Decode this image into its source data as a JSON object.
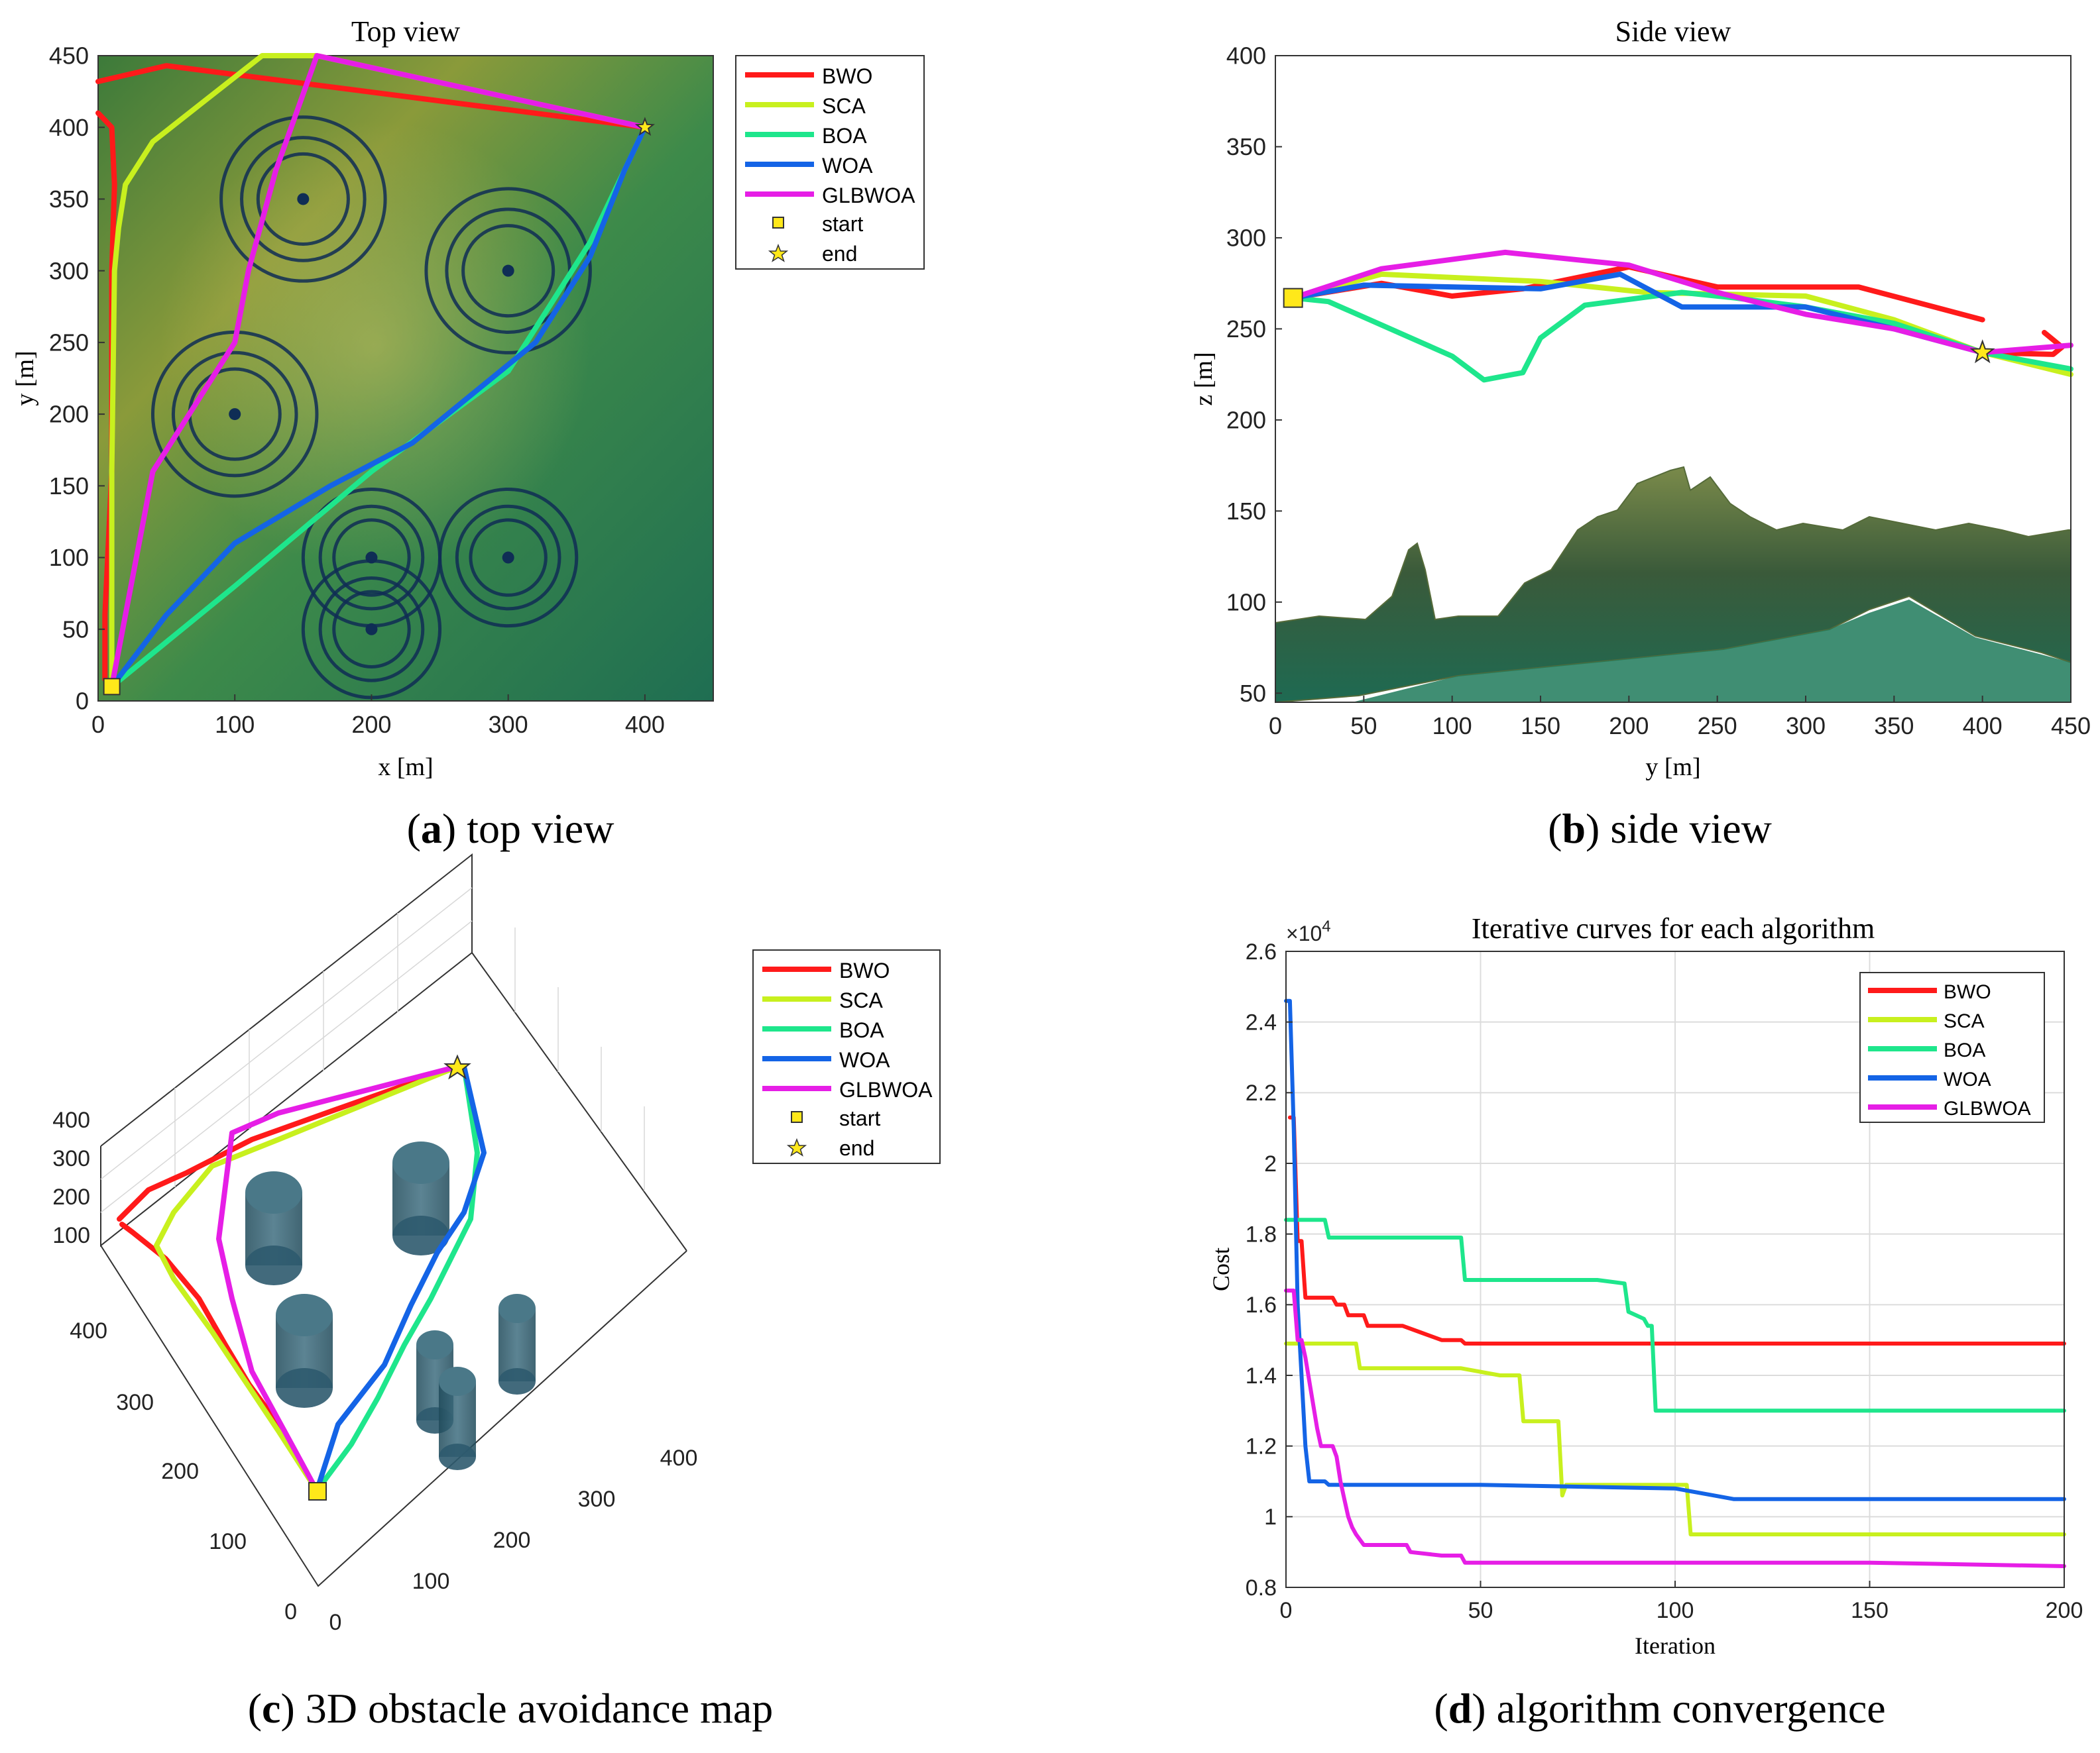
{
  "colors": {
    "BWO": "#ff1a1a",
    "SCA": "#c8f01e",
    "BOA": "#1ee68c",
    "WOA": "#1464e6",
    "GLBWOA": "#e61ee6",
    "obstacle_ring": "#0f2d55",
    "cylinder": "#2e5a6e",
    "marker": "#ffe81a"
  },
  "legend_labels": {
    "BWO": "BWO",
    "SCA": "SCA",
    "BOA": "BOA",
    "WOA": "WOA",
    "GLBWOA": "GLBWOA",
    "start": "start",
    "end": "end"
  },
  "captions": {
    "a_letter": "a",
    "a_text": "top view",
    "b_letter": "b",
    "b_text": "side view",
    "c_letter": "c",
    "c_text": "3D obstacle avoidance map",
    "d_letter": "d",
    "d_text": "algorithm convergence"
  },
  "panel_3d": {
    "y_ticks": [
      "400",
      "300",
      "200",
      "100",
      "0"
    ],
    "x_ticks": [
      "0",
      "100",
      "200",
      "300",
      "400"
    ],
    "z_ticks": [
      "400",
      "300",
      "200",
      "100"
    ]
  },
  "chart_data": [
    {
      "id": "top_view",
      "type": "line",
      "title": "Top view",
      "xlabel": "x [m]",
      "ylabel": "y [m]",
      "xlim": [
        0,
        450
      ],
      "ylim": [
        0,
        450
      ],
      "xticks": [
        0,
        100,
        200,
        300,
        400
      ],
      "yticks": [
        0,
        50,
        100,
        150,
        200,
        250,
        300,
        350,
        400,
        450
      ],
      "background": "terrain heightmap",
      "start": [
        10,
        10
      ],
      "end": [
        400,
        400
      ],
      "obstacles": [
        {
          "x": 150,
          "y": 350,
          "r": 60
        },
        {
          "x": 300,
          "y": 300,
          "r": 60
        },
        {
          "x": 100,
          "y": 200,
          "r": 60
        },
        {
          "x": 200,
          "y": 100,
          "r": 50
        },
        {
          "x": 300,
          "y": 100,
          "r": 50
        },
        {
          "x": 200,
          "y": 50,
          "r": 50
        }
      ],
      "series": [
        {
          "name": "BWO",
          "x": [
            5,
            5,
            10,
            10,
            12,
            10,
            5,
            0
          ],
          "y": [
            15,
            60,
            160,
            300,
            360,
            400,
            405,
            410
          ]
        },
        {
          "name": "BWO",
          "x": [
            0,
            50,
            400
          ],
          "y": [
            432,
            443,
            400
          ]
        },
        {
          "name": "SCA",
          "x": [
            10,
            10,
            12,
            15,
            20,
            40,
            80,
            120,
            160,
            400
          ],
          "y": [
            15,
            160,
            300,
            330,
            360,
            390,
            420,
            450,
            450,
            400
          ]
        },
        {
          "name": "BOA",
          "x": [
            10,
            100,
            200,
            300,
            360,
            390,
            400
          ],
          "y": [
            10,
            80,
            160,
            230,
            320,
            380,
            400
          ]
        },
        {
          "name": "WOA",
          "x": [
            10,
            50,
            100,
            170,
            230,
            320,
            360,
            385,
            400
          ],
          "y": [
            10,
            60,
            110,
            150,
            180,
            250,
            310,
            370,
            400
          ]
        },
        {
          "name": "GLBWOA",
          "x": [
            10,
            40,
            80,
            100,
            110,
            130,
            160,
            400
          ],
          "y": [
            10,
            160,
            220,
            250,
            300,
            370,
            450,
            400
          ]
        }
      ],
      "legend_position": "outside-right"
    },
    {
      "id": "side_view",
      "type": "line",
      "title": "Side view",
      "xlabel": "y [m]",
      "ylabel": "z [m]",
      "xlim": [
        0,
        450
      ],
      "ylim": [
        45,
        400
      ],
      "xticks": [
        0,
        50,
        100,
        150,
        200,
        250,
        300,
        350,
        400,
        450
      ],
      "yticks": [
        50,
        100,
        150,
        200,
        250,
        300,
        350,
        400
      ],
      "background": "terrain profile",
      "start": [
        10,
        267
      ],
      "end": [
        400,
        237
      ],
      "series": [
        {
          "name": "BWO",
          "x": [
            10,
            60,
            100,
            140,
            200,
            250,
            330,
            400
          ],
          "y": [
            267,
            275,
            268,
            272,
            284,
            273,
            273,
            255
          ]
        },
        {
          "name": "BWO",
          "x": [
            435,
            445,
            440,
            400
          ],
          "y": [
            248,
            240,
            236,
            237
          ]
        },
        {
          "name": "SCA",
          "x": [
            10,
            60,
            150,
            210,
            300,
            350,
            400,
            450
          ],
          "y": [
            267,
            280,
            276,
            270,
            268,
            255,
            237,
            225
          ]
        },
        {
          "name": "BOA",
          "x": [
            10,
            30,
            100,
            118,
            140,
            150,
            175,
            230,
            260,
            300,
            350,
            400,
            450
          ],
          "y": [
            267,
            265,
            235,
            222,
            226,
            245,
            263,
            270,
            267,
            262,
            253,
            237,
            228
          ]
        },
        {
          "name": "WOA",
          "x": [
            10,
            50,
            150,
            195,
            230,
            300,
            350,
            400
          ],
          "y": [
            267,
            274,
            272,
            280,
            262,
            262,
            250,
            237
          ]
        },
        {
          "name": "GLBWOA",
          "x": [
            10,
            60,
            130,
            200,
            250,
            300,
            350,
            400,
            450
          ],
          "y": [
            267,
            283,
            292,
            285,
            270,
            258,
            250,
            237,
            241
          ]
        }
      ]
    },
    {
      "id": "convergence",
      "type": "line",
      "title": "Iterative curves for each algorithm",
      "xlabel": "Iteration",
      "ylabel": "Cost",
      "exponent_label": "×10",
      "exponent": "4",
      "xlim": [
        0,
        200
      ],
      "ylim": [
        0.8,
        2.6
      ],
      "xticks": [
        0,
        50,
        100,
        150,
        200
      ],
      "yticks": [
        0.8,
        1,
        1.2,
        1.4,
        1.6,
        1.8,
        2,
        2.2,
        2.4,
        2.6
      ],
      "grid": true,
      "legend_position": "top-right",
      "series": [
        {
          "name": "BWO",
          "x": [
            1,
            2,
            3,
            4,
            5,
            6,
            12,
            13,
            15,
            16,
            20,
            21,
            25,
            26,
            30,
            35,
            40,
            45,
            46,
            50,
            100,
            150,
            200
          ],
          "y": [
            2.13,
            2.13,
            1.78,
            1.78,
            1.62,
            1.62,
            1.62,
            1.6,
            1.6,
            1.57,
            1.57,
            1.54,
            1.54,
            1.54,
            1.54,
            1.52,
            1.5,
            1.5,
            1.49,
            1.49,
            1.49,
            1.49,
            1.49
          ]
        },
        {
          "name": "SCA",
          "x": [
            0,
            18,
            19,
            45,
            55,
            60,
            61,
            70,
            71,
            72,
            100,
            103,
            104,
            110,
            200
          ],
          "y": [
            1.49,
            1.49,
            1.42,
            1.42,
            1.4,
            1.4,
            1.27,
            1.27,
            1.06,
            1.09,
            1.09,
            1.09,
            0.95,
            0.95,
            0.95
          ]
        },
        {
          "name": "BOA",
          "x": [
            0,
            10,
            11,
            45,
            46,
            80,
            87,
            88,
            92,
            93,
            94,
            95,
            200
          ],
          "y": [
            1.84,
            1.84,
            1.79,
            1.79,
            1.67,
            1.67,
            1.66,
            1.58,
            1.56,
            1.54,
            1.54,
            1.3,
            1.3
          ]
        },
        {
          "name": "WOA",
          "x": [
            0,
            1,
            2,
            3,
            5,
            6,
            10,
            11,
            50,
            100,
            110,
            115,
            200
          ],
          "y": [
            2.46,
            2.46,
            2.1,
            1.6,
            1.2,
            1.1,
            1.1,
            1.09,
            1.09,
            1.08,
            1.06,
            1.05,
            1.05
          ]
        },
        {
          "name": "GLBWOA",
          "x": [
            0,
            2,
            3,
            4,
            5,
            8,
            9,
            12,
            13,
            14,
            15,
            16,
            17,
            18,
            20,
            31,
            32,
            40,
            45,
            46,
            100,
            150,
            200
          ],
          "y": [
            1.64,
            1.64,
            1.5,
            1.5,
            1.45,
            1.25,
            1.2,
            1.2,
            1.17,
            1.1,
            1.05,
            1.0,
            0.97,
            0.95,
            0.92,
            0.92,
            0.9,
            0.89,
            0.89,
            0.87,
            0.87,
            0.87,
            0.86
          ]
        }
      ]
    }
  ]
}
